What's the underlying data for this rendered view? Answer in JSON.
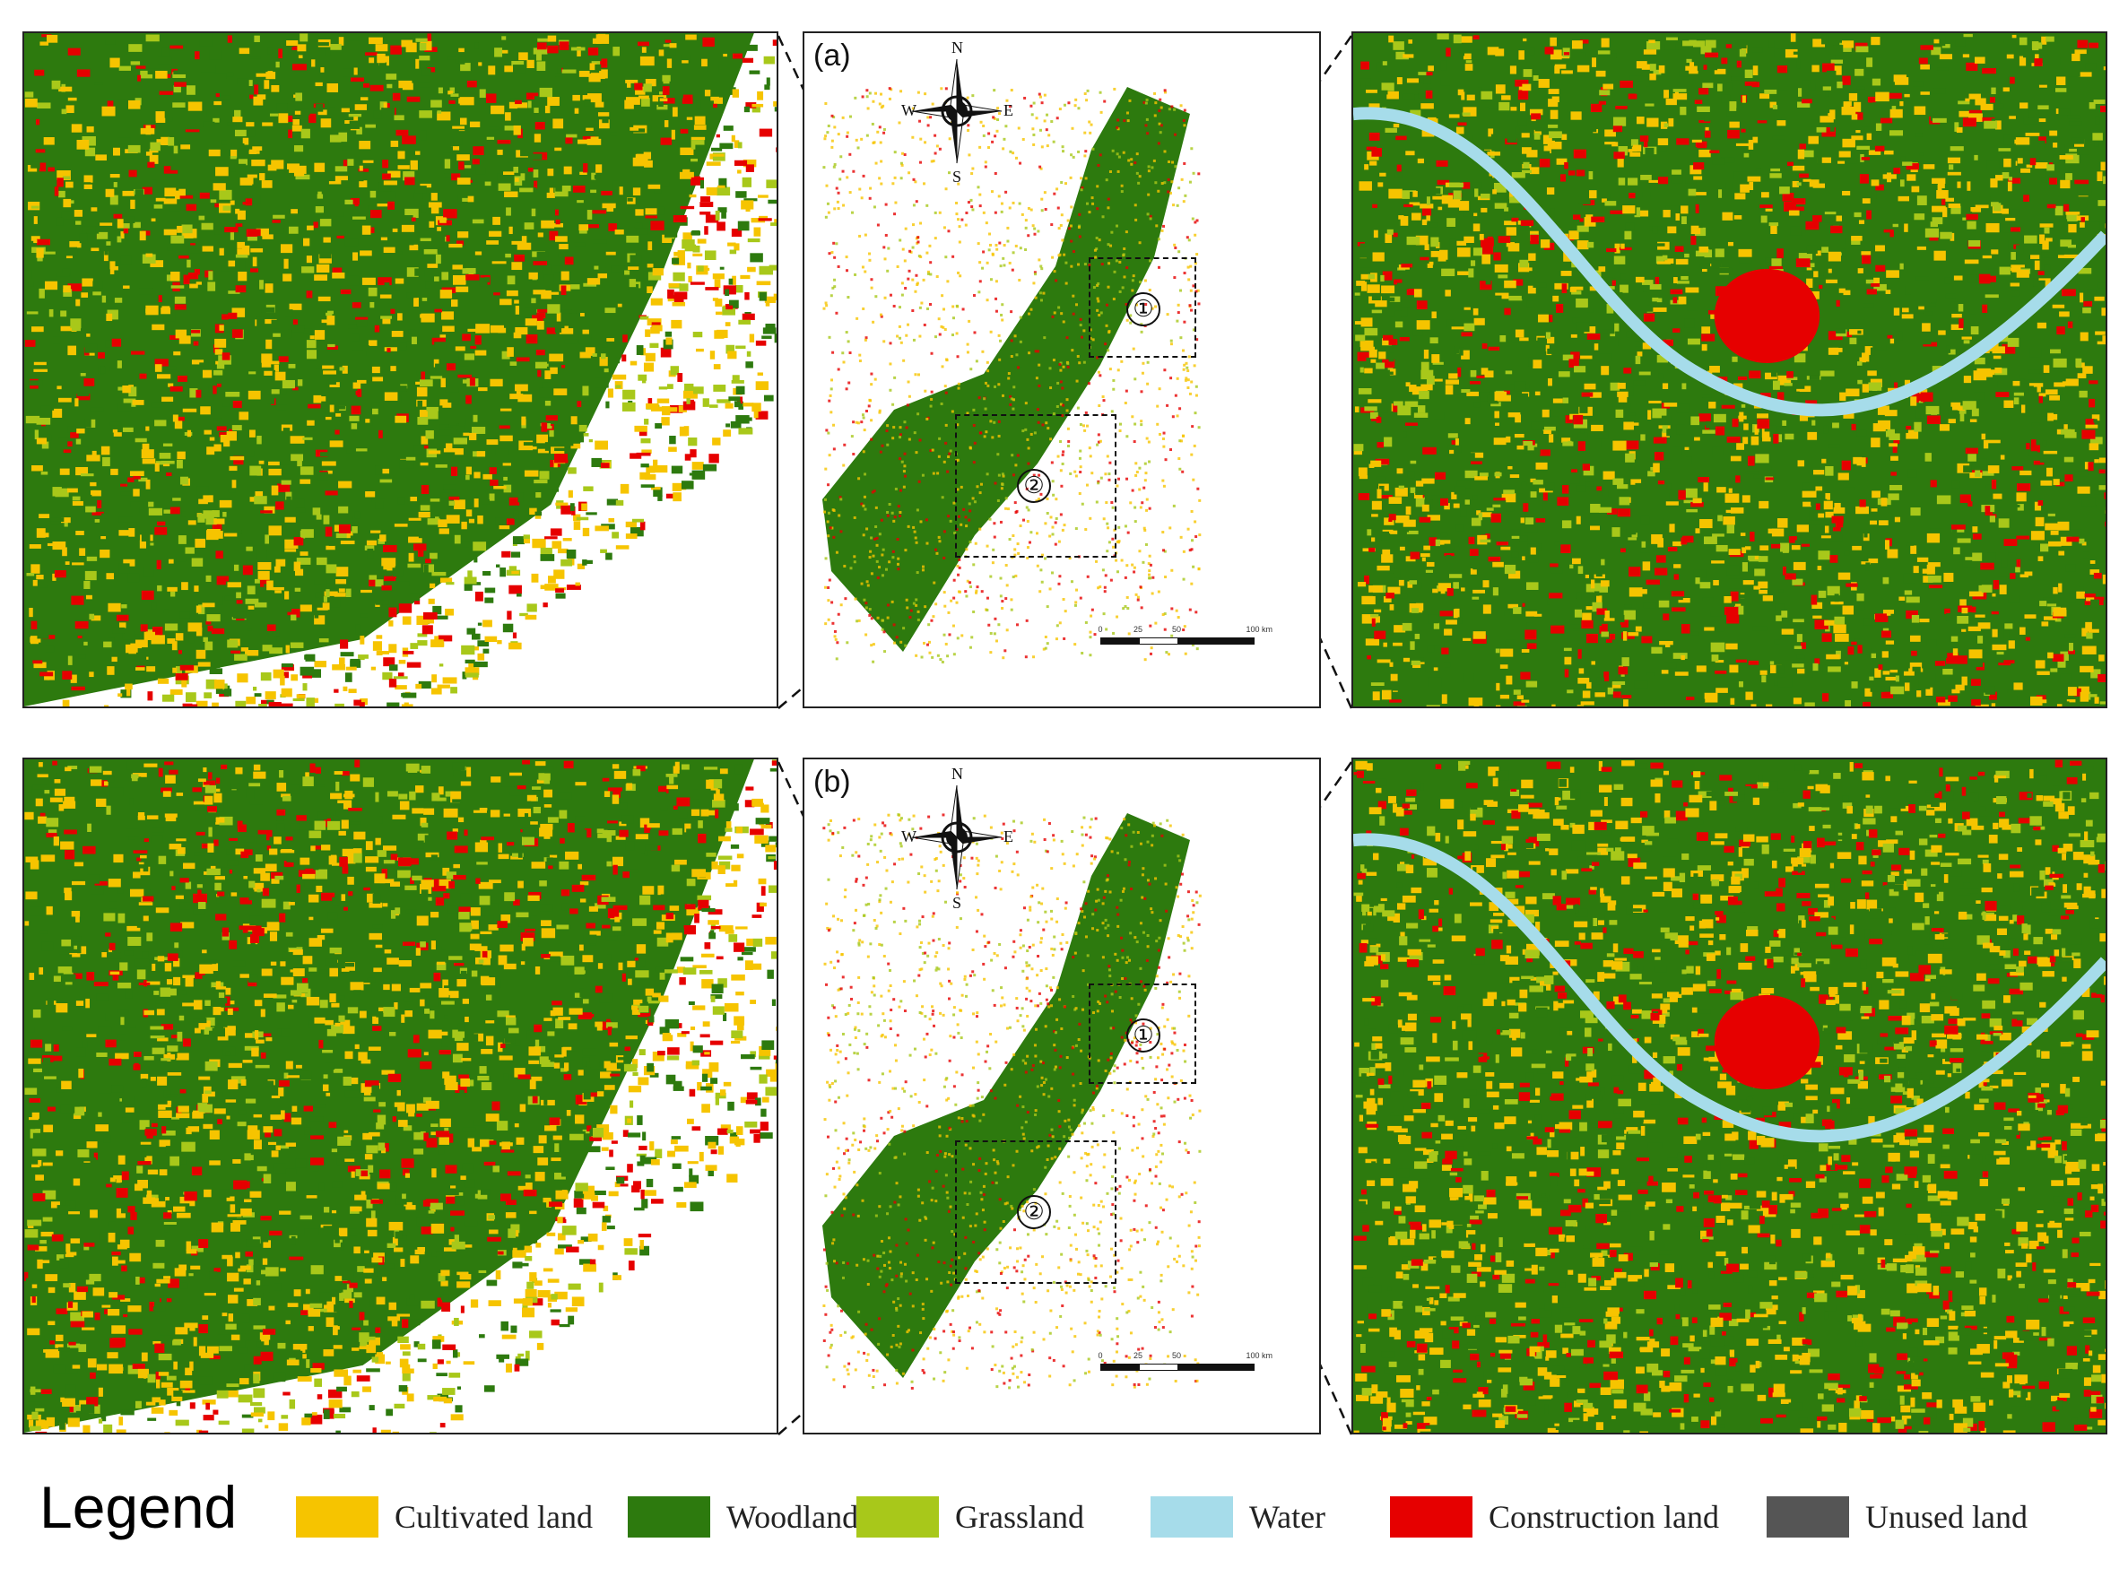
{
  "panels": [
    {
      "label": "(a)",
      "compass": {
        "n": "N",
        "s": "S",
        "e": "E",
        "w": "W"
      },
      "zones": [
        "①",
        "②"
      ],
      "scale_ticks": [
        "0",
        "25",
        "50",
        "100"
      ],
      "scale_unit": "km"
    },
    {
      "label": "(b)",
      "compass": {
        "n": "N",
        "s": "S",
        "e": "E",
        "w": "W"
      },
      "zones": [
        "①",
        "②"
      ],
      "scale_ticks": [
        "0",
        "25",
        "50",
        "100"
      ],
      "scale_unit": "km"
    }
  ],
  "legend": {
    "title": "Legend",
    "items": [
      {
        "label": "Cultivated land",
        "color": "#f6c400"
      },
      {
        "label": "Woodland",
        "color": "#2d7a0e"
      },
      {
        "label": "Grassland",
        "color": "#a8c81a"
      },
      {
        "label": "Water",
        "color": "#a6dcea"
      },
      {
        "label": "Construction land",
        "color": "#e60000"
      },
      {
        "label": "Unused land",
        "color": "#555555"
      }
    ]
  }
}
